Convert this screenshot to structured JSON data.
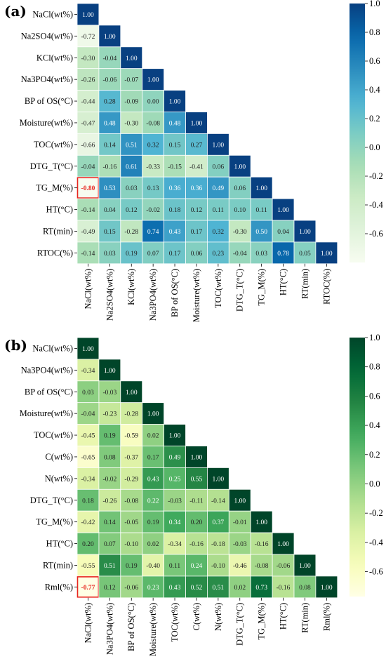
{
  "chart_data": [
    {
      "type": "heatmap",
      "panel_label": "(a)",
      "colormap": "GnBu",
      "vmin": -0.8,
      "vmax": 1.0,
      "colorbar_ticks": [
        "1.0",
        "0.8",
        "0.6",
        "0.4",
        "0.2",
        "0.0",
        "-0.2",
        "-0.4",
        "-0.6"
      ],
      "highlight": {
        "row": 8,
        "col": 0,
        "color": "#e8251f"
      },
      "row_labels": [
        "NaCl(wt%)",
        "Na2SO4(wt%)",
        "KCl(wt%)",
        "Na3PO4(wt%)",
        "BP of OS(°C)",
        "Moisture(wt%)",
        "TOC(wt%)",
        "DTG_T(°C)",
        "TG_M(%)",
        "HT(°C)",
        "RT(min)",
        "RTOC(%)"
      ],
      "col_labels": [
        "NaCl(wt%)",
        "Na2SO4(wt%)",
        "KCl(wt%)",
        "Na3PO4(wt%)",
        "BP of OS(°C)",
        "Moisture(wt%)",
        "TOC(wt%)",
        "DTG_T(°C)",
        "TG_M(%)",
        "HT(°C)",
        "RT(min)",
        "RTOC(%)"
      ],
      "values": [
        [
          1.0
        ],
        [
          -0.72,
          1.0
        ],
        [
          -0.3,
          -0.04,
          1.0
        ],
        [
          -0.26,
          -0.06,
          -0.07,
          1.0
        ],
        [
          -0.44,
          0.28,
          -0.09,
          0.0,
          1.0
        ],
        [
          -0.47,
          0.48,
          -0.3,
          -0.08,
          0.48,
          1.0
        ],
        [
          -0.66,
          0.14,
          0.51,
          0.32,
          0.15,
          0.27,
          1.0
        ],
        [
          -0.04,
          -0.16,
          0.61,
          -0.33,
          -0.15,
          -0.41,
          0.06,
          1.0
        ],
        [
          -0.8,
          0.53,
          0.03,
          0.13,
          0.36,
          0.36,
          0.49,
          0.06,
          1.0
        ],
        [
          -0.14,
          0.04,
          0.12,
          -0.02,
          0.18,
          0.12,
          0.11,
          0.1,
          0.11,
          1.0
        ],
        [
          -0.49,
          0.15,
          -0.28,
          0.74,
          0.43,
          0.17,
          0.32,
          -0.3,
          0.5,
          0.04,
          1.0
        ],
        [
          -0.14,
          0.03,
          0.19,
          0.07,
          0.17,
          0.06,
          0.23,
          -0.04,
          0.03,
          0.78,
          0.05,
          1.0
        ]
      ]
    },
    {
      "type": "heatmap",
      "panel_label": "(b)",
      "colormap": "YlGn",
      "vmin": -0.77,
      "vmax": 1.0,
      "colorbar_ticks": [
        "1.0",
        "0.8",
        "0.6",
        "0.4",
        "0.2",
        "0.0",
        "-0.2",
        "-0.4",
        "-0.6"
      ],
      "highlight": {
        "row": 11,
        "col": 0,
        "color": "#e8251f"
      },
      "row_labels": [
        "NaCl(wt%)",
        "Na3PO4(wt%)",
        "BP of OS(°C)",
        "Moisture(wt%)",
        "TOC(wt%)",
        "C(wt%)",
        "N(wt%)",
        "DTG_T(°C)",
        "TG_M(%)",
        "HT(°C)",
        "RT(min)",
        "Rml(%)"
      ],
      "col_labels": [
        "NaCl(wt%)",
        "Na3PO4(wt%)",
        "BP of OS(°C)",
        "Moisture(wt%)",
        "TOC(wt%)",
        "C(wt%)",
        "N(wt%)",
        "DTG_T(°C)",
        "TG_M(%)",
        "HT(°C)",
        "RT(min)",
        "Rml(%)"
      ],
      "values": [
        [
          1.0
        ],
        [
          -0.34,
          1.0
        ],
        [
          0.03,
          -0.03,
          1.0
        ],
        [
          -0.04,
          -0.23,
          -0.28,
          1.0
        ],
        [
          -0.45,
          0.19,
          -0.59,
          0.02,
          1.0
        ],
        [
          -0.65,
          0.08,
          -0.37,
          0.17,
          0.49,
          1.0
        ],
        [
          -0.34,
          -0.02,
          -0.29,
          0.43,
          0.25,
          0.55,
          1.0
        ],
        [
          0.18,
          -0.26,
          -0.08,
          0.22,
          -0.03,
          -0.11,
          -0.14,
          1.0
        ],
        [
          -0.42,
          0.14,
          -0.05,
          0.19,
          0.34,
          0.2,
          0.37,
          -0.01,
          1.0
        ],
        [
          0.2,
          0.07,
          -0.1,
          0.02,
          -0.34,
          -0.16,
          -0.18,
          -0.03,
          -0.16,
          1.0
        ],
        [
          -0.55,
          0.51,
          0.19,
          -0.4,
          0.11,
          0.24,
          -0.1,
          -0.46,
          -0.08,
          -0.06,
          1.0
        ],
        [
          -0.77,
          0.12,
          -0.06,
          0.23,
          0.43,
          0.52,
          0.51,
          0.02,
          0.73,
          -0.16,
          0.08,
          1.0
        ]
      ]
    }
  ]
}
